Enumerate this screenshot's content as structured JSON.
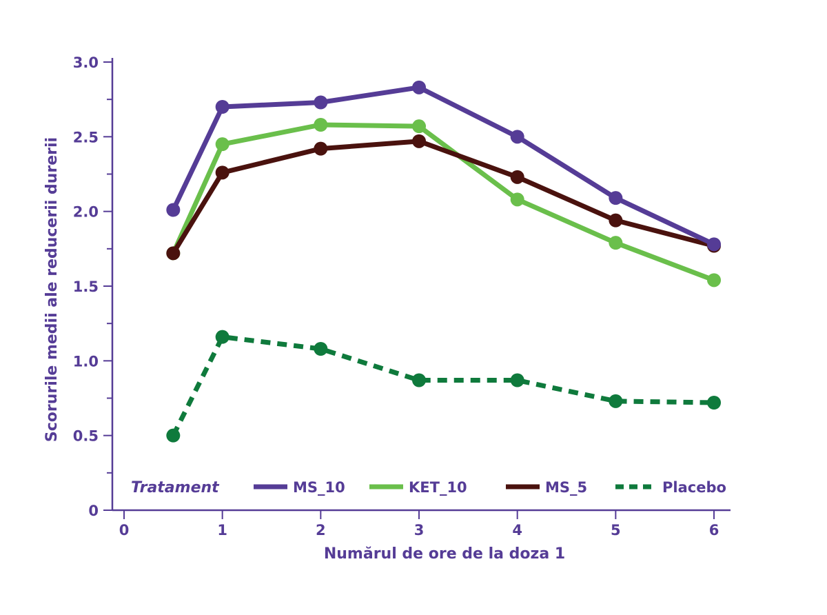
{
  "chart_data": {
    "type": "line",
    "xlabel": "Numărul de ore de la doza 1",
    "ylabel": "Scorurile medii ale reducerii durerii",
    "x_ticks": [
      "0",
      "1",
      "2",
      "3",
      "4",
      "5",
      "6"
    ],
    "y_ticks": [
      "0",
      "0.5",
      "1.0",
      "1.5",
      "2.0",
      "2.5",
      "3.0"
    ],
    "xlim": [
      0,
      6
    ],
    "ylim": [
      0,
      3.0
    ],
    "grid": false,
    "legend": {
      "title": "Tratament",
      "placement": "bottom"
    },
    "x": [
      0.5,
      1,
      2,
      3,
      4,
      5,
      6
    ],
    "series": [
      {
        "name": "MS_10",
        "color": "#553c96",
        "style": "solid",
        "values": [
          2.01,
          2.7,
          2.73,
          2.83,
          2.5,
          2.09,
          1.78
        ]
      },
      {
        "name": "KET_10",
        "color": "#6abf4b",
        "style": "solid",
        "values": [
          1.72,
          2.45,
          2.58,
          2.57,
          2.08,
          1.79,
          1.54
        ]
      },
      {
        "name": "MS_5",
        "color": "#4a120e",
        "style": "solid",
        "values": [
          1.72,
          2.26,
          2.42,
          2.47,
          2.23,
          1.94,
          1.77
        ]
      },
      {
        "name": "Placebo",
        "color": "#0f7a3c",
        "style": "dashed",
        "values": [
          0.5,
          1.16,
          1.08,
          0.87,
          0.87,
          0.73,
          0.72
        ]
      }
    ],
    "axis_color": "#553c96"
  }
}
